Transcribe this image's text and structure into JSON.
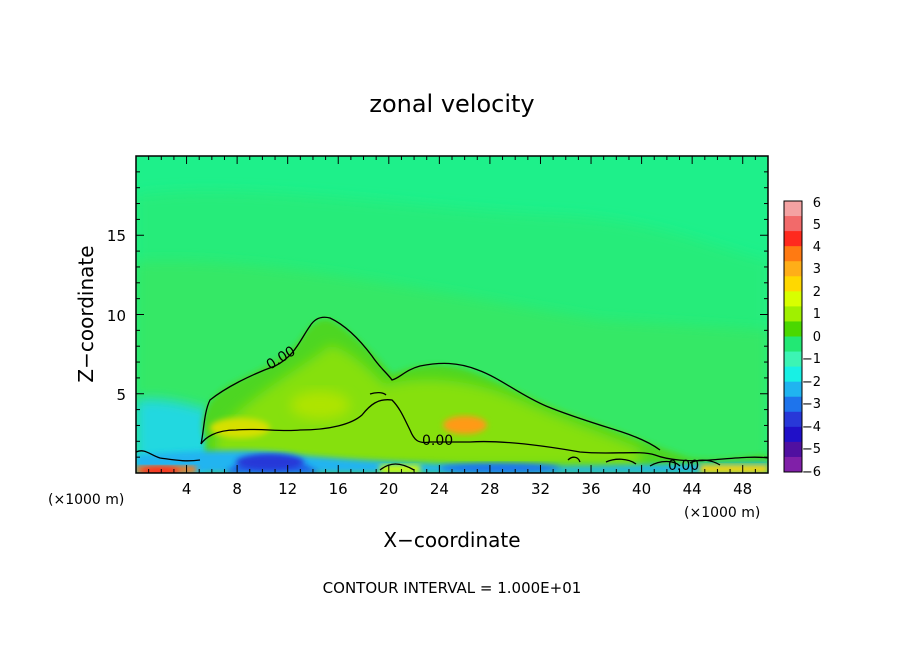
{
  "chart_data": {
    "type": "heatmap",
    "title": "zonal velocity",
    "xlabel": "X−coordinate",
    "ylabel": "Z−coordinate",
    "x_unit_left": "(×1000 m)",
    "x_unit_right": "(×1000 m)",
    "footer": "CONTOUR INTERVAL = 1.000E+01",
    "xlim": [
      0,
      50
    ],
    "ylim": [
      0,
      20
    ],
    "x_ticks": [
      4,
      8,
      12,
      16,
      20,
      24,
      28,
      32,
      36,
      40,
      44,
      48
    ],
    "y_ticks": [
      5,
      10,
      15
    ],
    "colorbar": {
      "min": -6,
      "max": 6,
      "tick_labels": [
        "6",
        "5",
        "4",
        "3",
        "2",
        "1",
        "0",
        "−1",
        "−2",
        "−3",
        "−4",
        "−5",
        "−6"
      ],
      "colors": [
        "#f4a2a2",
        "#f26a6a",
        "#ff2a1e",
        "#ff7a12",
        "#ffae18",
        "#ffd800",
        "#d8ff00",
        "#a0f000",
        "#4ad800",
        "#22e874",
        "#3cf4b4",
        "#18f0e4",
        "#20b4f0",
        "#1e74ec",
        "#2838d8",
        "#2010c8",
        "#5010a0",
        "#8020a8"
      ]
    },
    "contour_labels": [
      {
        "text": "0.00",
        "x": 10.8,
        "z": 7.2
      },
      {
        "text": "0.00",
        "x": 23.5,
        "z": 2.2
      },
      {
        "text": "0.00",
        "x": 43.6,
        "z": 0.6
      }
    ]
  }
}
